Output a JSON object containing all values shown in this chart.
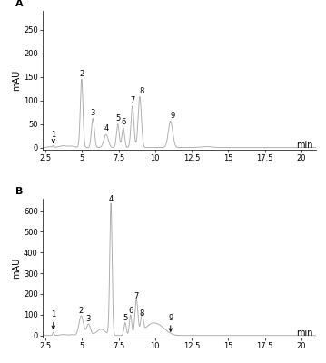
{
  "panel_A_label": "A",
  "panel_B_label": "B",
  "ylabel": "mAU",
  "xlabel": "min",
  "A_ylim": [
    -5,
    290
  ],
  "B_ylim": [
    -10,
    660
  ],
  "xlim": [
    2.3,
    21.0
  ],
  "A_yticks": [
    0,
    50,
    100,
    150,
    200,
    250
  ],
  "B_yticks": [
    0,
    100,
    200,
    300,
    400,
    500,
    600
  ],
  "xticks": [
    2.5,
    5.0,
    7.5,
    10.0,
    12.5,
    15.0,
    17.5,
    20.0
  ],
  "xtick_labels": [
    "2.5",
    "5",
    "7.5",
    "10",
    "12.5",
    "15",
    "17.5",
    "20"
  ],
  "line_color": "#aaaaaa",
  "bg_color": "#ffffff"
}
